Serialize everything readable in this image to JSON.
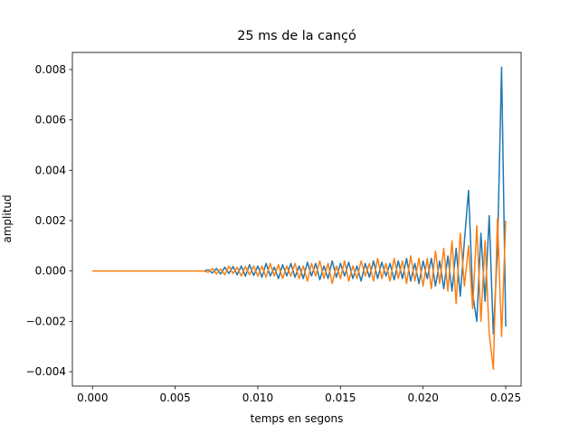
{
  "chart_data": {
    "type": "line",
    "title": "25 ms de la cançó",
    "xlabel": "temps en segons",
    "ylabel": "amplitud",
    "x": [
      0,
      0.00025,
      0.0005,
      0.00075,
      0.001,
      0.00125,
      0.0015,
      0.00175,
      0.002,
      0.00225,
      0.0025,
      0.00275,
      0.003,
      0.00325,
      0.0035,
      0.00375,
      0.004,
      0.00425,
      0.0045,
      0.00475,
      0.005,
      0.00525,
      0.0055,
      0.00575,
      0.006,
      0.00625,
      0.0065,
      0.00675,
      0.007,
      0.00725,
      0.0075,
      0.00775,
      0.008,
      0.00825,
      0.0085,
      0.00875,
      0.009,
      0.00925,
      0.0095,
      0.00975,
      0.01,
      0.01025,
      0.0105,
      0.01075,
      0.011,
      0.01125,
      0.0115,
      0.01175,
      0.012,
      0.01225,
      0.0125,
      0.01275,
      0.013,
      0.01325,
      0.0135,
      0.01375,
      0.014,
      0.01425,
      0.0145,
      0.01475,
      0.015,
      0.01525,
      0.0155,
      0.01575,
      0.016,
      0.01625,
      0.0165,
      0.01675,
      0.017,
      0.01725,
      0.0175,
      0.01775,
      0.018,
      0.01825,
      0.0185,
      0.01875,
      0.019,
      0.01925,
      0.0195,
      0.01975,
      0.02,
      0.02025,
      0.0205,
      0.02075,
      0.021,
      0.02125,
      0.0215,
      0.02175,
      0.022,
      0.02225,
      0.0225,
      0.02275,
      0.023,
      0.02325,
      0.0235,
      0.02375,
      0.024,
      0.02425,
      0.0245,
      0.02475,
      0.025
    ],
    "series": [
      {
        "color": "#1f77b4",
        "values": [
          0,
          0,
          0,
          0,
          0,
          0,
          0,
          0,
          0,
          0,
          0,
          0,
          0,
          0,
          0,
          0,
          0,
          0,
          0,
          0,
          0,
          0,
          0,
          0,
          0,
          0,
          0,
          0,
          5e-05,
          -8e-05,
          0.0001,
          -0.00012,
          0.00015,
          -0.0001,
          0.00018,
          -0.00015,
          0.0002,
          -0.0002,
          0.00025,
          -0.00018,
          0.0002,
          -0.00025,
          0.0003,
          -0.0002,
          0.00015,
          -0.0003,
          0.00025,
          -0.0002,
          0.0003,
          -0.00025,
          0.0002,
          -0.0003,
          0.00035,
          -0.0002,
          0.0003,
          -0.00035,
          0.0002,
          -0.0003,
          0.0004,
          -0.00025,
          0.0003,
          -0.0002,
          0.00035,
          -0.0003,
          0.0002,
          -0.0004,
          0.0003,
          -0.00025,
          0.0004,
          -0.0003,
          0.00035,
          -0.0002,
          0.0003,
          -0.00035,
          0.0004,
          -0.0003,
          0.0005,
          -0.0004,
          0.0003,
          -0.0005,
          0.0004,
          -0.0003,
          0.0005,
          -0.0006,
          0.0004,
          -0.0007,
          0.0006,
          -0.0008,
          0.0009,
          -0.001,
          0.0012,
          0.0032,
          -0.0009,
          -0.002,
          0.0015,
          -0.0012,
          0.0022,
          -0.0025,
          0.0008,
          0.0081,
          -0.0022
        ]
      },
      {
        "color": "#ff7f0e",
        "values": [
          0,
          0,
          0,
          0,
          0,
          0,
          0,
          0,
          0,
          0,
          0,
          0,
          0,
          0,
          0,
          0,
          0,
          0,
          0,
          0,
          0,
          0,
          0,
          0,
          0,
          0,
          0,
          0,
          -5e-05,
          0.0001,
          -0.00012,
          8e-05,
          -0.00015,
          0.0002,
          -0.0001,
          0.00015,
          -0.0002,
          0.00018,
          -0.00015,
          0.0002,
          -0.0002,
          0.0002,
          -0.00025,
          0.0003,
          -0.0002,
          0.00025,
          -0.0003,
          0.0002,
          -0.0002,
          0.0003,
          -0.0003,
          0.0002,
          -0.0004,
          0.0003,
          -0.0002,
          0.0004,
          -0.0003,
          0.0003,
          -0.0005,
          0.0002,
          -0.0003,
          0.0004,
          -0.0004,
          0.0002,
          -0.0003,
          0.0004,
          -0.0002,
          0.0003,
          -0.0004,
          0.0005,
          -0.0003,
          0.0003,
          -0.0004,
          0.0005,
          -0.0003,
          0.0004,
          -0.0005,
          0.0006,
          -0.0004,
          0.0005,
          -0.0006,
          0.0005,
          -0.0007,
          0.0008,
          -0.0005,
          0.0009,
          -0.0008,
          0.0012,
          -0.0013,
          0.0015,
          -0.0006,
          0.001,
          -0.0015,
          0.0018,
          -0.002,
          0.0012,
          -0.0025,
          -0.0039,
          0.0021,
          -0.0026,
          0.002
        ]
      }
    ],
    "xlim": [
      -0.00122,
      0.02593
    ],
    "ylim": [
      -0.00457,
      0.00868
    ],
    "xticks": [
      {
        "value": 0,
        "label": "0.000"
      },
      {
        "value": 0.005,
        "label": "0.005"
      },
      {
        "value": 0.01,
        "label": "0.010"
      },
      {
        "value": 0.015,
        "label": "0.015"
      },
      {
        "value": 0.02,
        "label": "0.020"
      },
      {
        "value": 0.025,
        "label": "0.025"
      }
    ],
    "yticks": [
      {
        "value": -0.004,
        "label": "−0.004"
      },
      {
        "value": -0.002,
        "label": "−0.002"
      },
      {
        "value": 0,
        "label": "0.000"
      },
      {
        "value": 0.002,
        "label": "0.002"
      },
      {
        "value": 0.004,
        "label": "0.004"
      },
      {
        "value": 0.006,
        "label": "0.006"
      },
      {
        "value": 0.008,
        "label": "0.008"
      }
    ]
  }
}
